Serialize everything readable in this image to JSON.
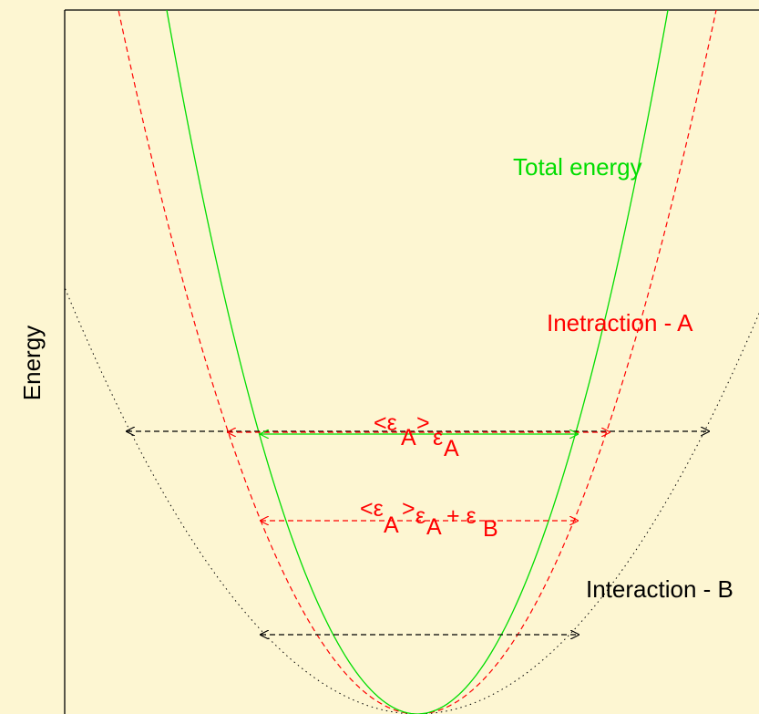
{
  "ylabel": "Energy",
  "labels": {
    "total_energy": "Total energy",
    "interaction_a": "Inetraction - A",
    "interaction_b": "Interaction - B"
  },
  "formula_upper": {
    "open": "<ε",
    "sub1": "A",
    "close": ">",
    "eps": "ε",
    "sub2": "A"
  },
  "formula_lower": {
    "open": "<ε",
    "sub1": "A",
    "close": ">",
    "eps": "ε",
    "sub2": "A",
    "plus": " + ε",
    "sub3": "B"
  },
  "colors": {
    "background": "#fdf6d2",
    "total": "#00dd00",
    "interaction_a": "#ff0000",
    "interaction_b": "#000000",
    "axis": "#000000"
  },
  "curves": [
    {
      "name": "Total energy",
      "style": "solid",
      "color": "#00dd00"
    },
    {
      "name": "Inetraction - A",
      "style": "dashed",
      "color": "#ff0000"
    },
    {
      "name": "Interaction - B",
      "style": "dotted",
      "color": "#000000"
    }
  ],
  "arrows": [
    {
      "level": "upper",
      "span": "Interaction - B",
      "style": "dashed",
      "color": "#000000"
    },
    {
      "level": "upper",
      "span": "Inetraction - A",
      "style": "dashed",
      "color": "#ff0000"
    },
    {
      "level": "upper",
      "span": "Total energy",
      "style": "solid",
      "color": "#00dd00"
    },
    {
      "level": "middle",
      "span": "Total energy",
      "style": "dashed",
      "color": "#ff0000"
    },
    {
      "level": "lower",
      "span": "Total energy",
      "style": "dashed",
      "color": "#000000"
    }
  ]
}
